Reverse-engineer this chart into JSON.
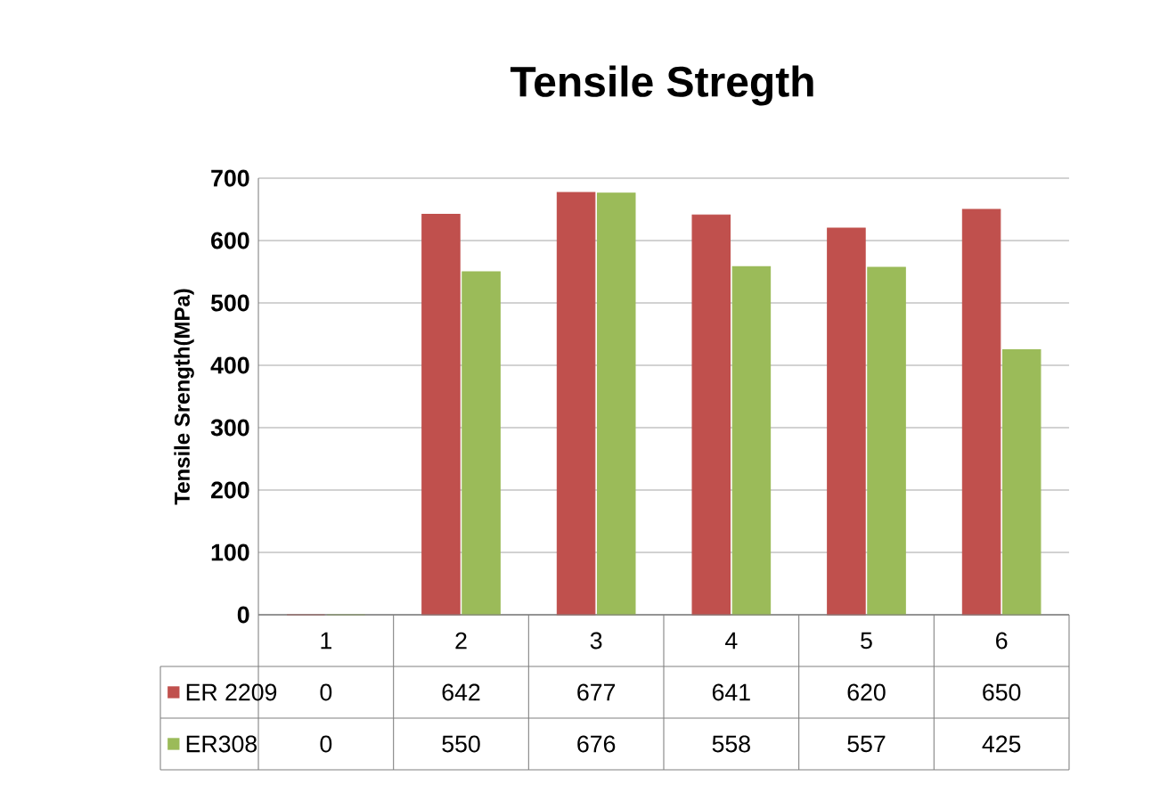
{
  "chart_data": {
    "type": "bar",
    "title": "Tensile Stregth",
    "ylabel": "Tensile Srength(MPa)",
    "categories": [
      "1",
      "2",
      "3",
      "4",
      "5",
      "6"
    ],
    "series": [
      {
        "name": "ER 2209",
        "color": "#c0504d",
        "values": [
          0,
          642,
          677,
          641,
          620,
          650
        ],
        "value_labels": [
          "0",
          "642",
          "677",
          "641",
          "620",
          "650"
        ]
      },
      {
        "name": "ER308",
        "color": "#9bbb59",
        "values": [
          0,
          550,
          676,
          558,
          557,
          425
        ],
        "value_labels": [
          "0",
          "550",
          "676",
          "558",
          "557",
          "425"
        ]
      }
    ],
    "ylim": [
      0,
      700
    ],
    "yticks": [
      0,
      100,
      200,
      300,
      400,
      500,
      600,
      700
    ],
    "grid": "y",
    "legend": "bottom"
  }
}
